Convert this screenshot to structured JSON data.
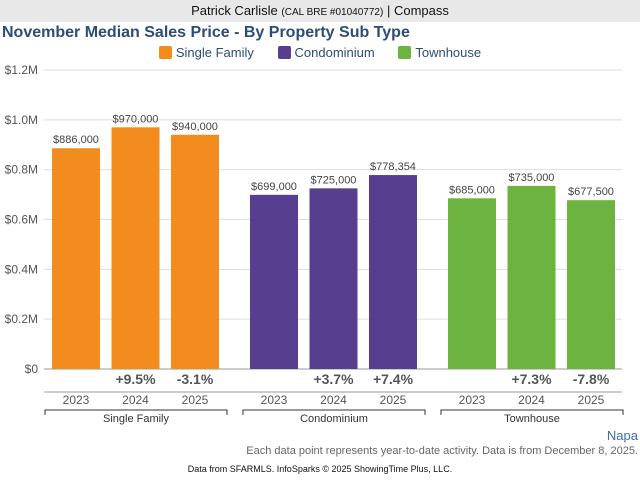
{
  "header": {
    "agent": "Patrick Carlisle",
    "license": "(CAL BRE #01040772)",
    "sep": "|",
    "company": "Compass"
  },
  "region": "Napa",
  "note": "Each data point represents year-to-date activity. Data is from December 8, 2025.",
  "source": "Data from SFARMLS. InfoSparks © 2025 ShowingTime Plus, LLC.",
  "chart_data": {
    "type": "bar",
    "title": "November Median Sales Price - By Property Sub Type",
    "ylim": [
      0,
      1200000
    ],
    "yticks": [
      {
        "v": 0,
        "label": "$0"
      },
      {
        "v": 200000,
        "label": "$0.2M"
      },
      {
        "v": 400000,
        "label": "$0.4M"
      },
      {
        "v": 600000,
        "label": "$0.6M"
      },
      {
        "v": 800000,
        "label": "$0.8M"
      },
      {
        "v": 1000000,
        "label": "$1.0M"
      },
      {
        "v": 1200000,
        "label": "$1.2M"
      }
    ],
    "categories": [
      "2023",
      "2024",
      "2025"
    ],
    "legend_position": "top-center",
    "series": [
      {
        "name": "Single Family",
        "color": "#f28c1e",
        "values": [
          886000,
          970000,
          940000
        ],
        "labels": [
          "$886,000",
          "$970,000",
          "$940,000"
        ],
        "changes": [
          "",
          "+9.5%",
          "-3.1%"
        ]
      },
      {
        "name": "Condominium",
        "color": "#553f8e",
        "values": [
          699000,
          725000,
          778354
        ],
        "labels": [
          "$699,000",
          "$725,000",
          "$778,354"
        ],
        "changes": [
          "",
          "+3.7%",
          "+7.4%"
        ]
      },
      {
        "name": "Townhouse",
        "color": "#6cb33f",
        "values": [
          685000,
          735000,
          677500
        ],
        "labels": [
          "$685,000",
          "$735,000",
          "$677,500"
        ],
        "changes": [
          "",
          "+7.3%",
          "-7.8%"
        ]
      }
    ]
  }
}
